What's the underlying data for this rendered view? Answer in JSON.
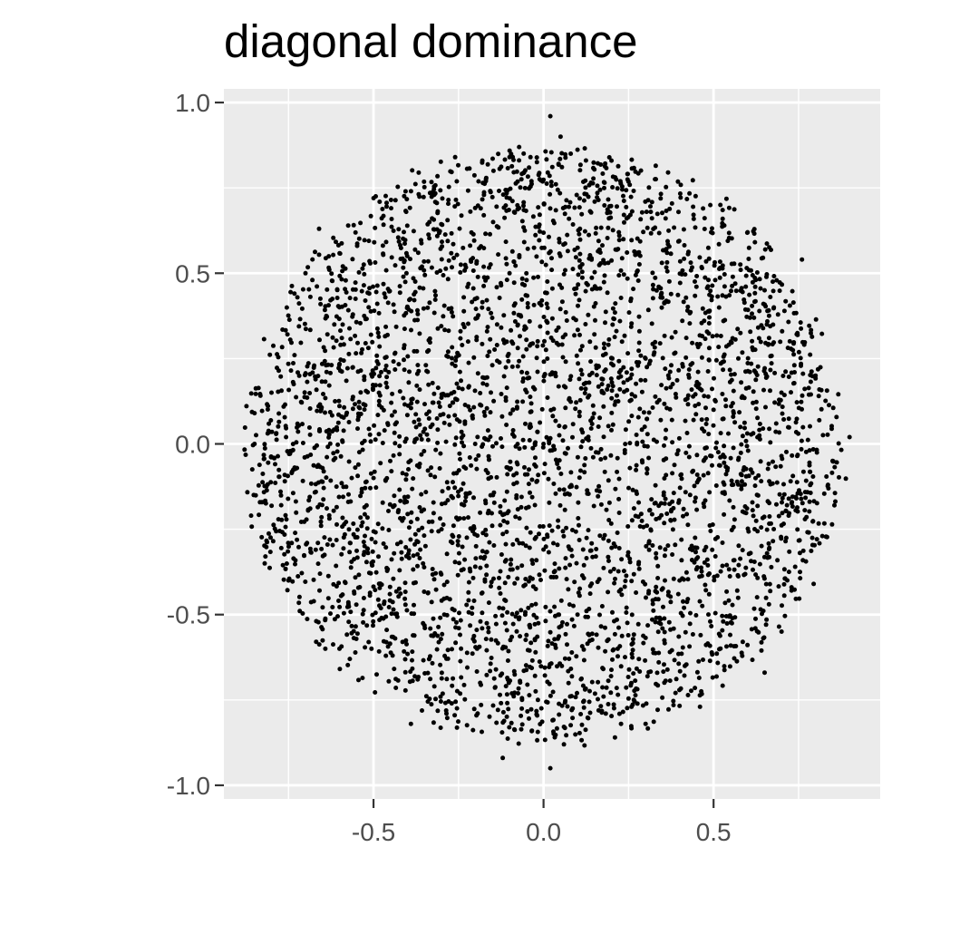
{
  "chart_data": {
    "type": "scatter",
    "title": "diagonal dominance",
    "xlabel": "",
    "ylabel": "",
    "xlim": [
      -0.94,
      0.99
    ],
    "ylim": [
      -1.04,
      1.04
    ],
    "x_ticks": [
      -0.5,
      0.0,
      0.5
    ],
    "x_tick_labels": [
      "-0.5",
      "0.0",
      "0.5"
    ],
    "y_ticks": [
      -1.0,
      -0.5,
      0.0,
      0.5,
      1.0
    ],
    "y_tick_labels": [
      "-1.0",
      "-0.5",
      "0.0",
      "0.5",
      "1.0"
    ],
    "x_minor_ticks": [
      -0.75,
      -0.25,
      0.25,
      0.75
    ],
    "y_minor_ticks": [
      -0.75,
      -0.25,
      0.25,
      0.75
    ],
    "grid": true,
    "legend": "none",
    "colors": {
      "panel_background": "#ebebeb",
      "grid_line": "#ffffff",
      "point": "#000000",
      "tick_text": "#4d4d4d",
      "axis_tick": "#333333"
    },
    "distribution": "approximately uniform over a disc centered at (0.0, 0.0), x spanning about -0.86 to 0.9, y spanning about -0.95 to 0.96",
    "point_count_approx": 4000,
    "points": [
      [
        0.02,
        0.96
      ],
      [
        0.05,
        0.9
      ],
      [
        0.02,
        -0.95
      ],
      [
        -0.12,
        -0.92
      ],
      [
        0.06,
        -0.88
      ],
      [
        -0.85,
        0.0
      ],
      [
        0.9,
        0.02
      ],
      [
        -0.86,
        -0.21
      ],
      [
        0.82,
        -0.27
      ],
      [
        -0.66,
        0.63
      ],
      [
        0.65,
        -0.67
      ],
      [
        0.76,
        0.54
      ],
      [
        -0.39,
        -0.82
      ],
      [
        0.2,
        0.83
      ],
      [
        -0.18,
        0.83
      ],
      [
        0.6,
        0.62
      ],
      [
        0.8,
        0.2
      ],
      [
        -0.8,
        0.15
      ],
      [
        0.74,
        -0.36
      ],
      [
        -0.82,
        -0.35
      ],
      [
        0.21,
        -0.86
      ],
      [
        -0.26,
        0.84
      ],
      [
        0.08,
        0.85
      ],
      [
        -0.1,
        0.84
      ],
      [
        0.52,
        0.7
      ],
      [
        -0.5,
        0.72
      ],
      [
        0.46,
        -0.77
      ],
      [
        -0.27,
        -0.76
      ],
      [
        0.3,
        -0.82
      ],
      [
        -0.7,
        0.5
      ],
      [
        0.85,
        -0.05
      ],
      [
        -0.75,
        -0.4
      ],
      [
        0.7,
        -0.55
      ],
      [
        -0.6,
        -0.6
      ],
      [
        0.65,
        0.45
      ],
      [
        -0.6,
        0.4
      ],
      [
        0.0,
        0.0
      ],
      [
        0.3,
        0.25
      ],
      [
        -0.3,
        -0.25
      ],
      [
        0.4,
        -0.4
      ],
      [
        -0.4,
        0.4
      ],
      [
        0.1,
        -0.5
      ],
      [
        -0.1,
        0.5
      ],
      [
        0.5,
        0.1
      ],
      [
        -0.5,
        -0.1
      ]
    ]
  }
}
